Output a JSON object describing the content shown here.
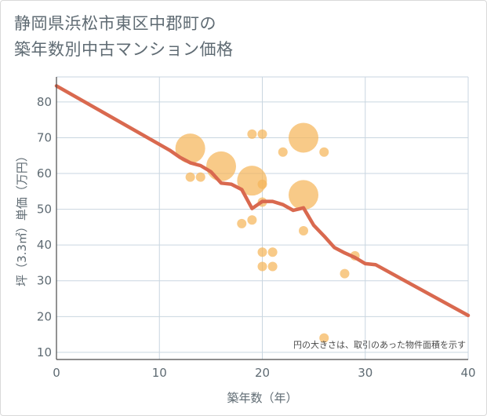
{
  "title_lines": [
    "静岡県浜松市東区中郡町の",
    "築年数別中古マンション価格"
  ],
  "colors": {
    "bubble": "#f5b55a",
    "trend": "#d9694f",
    "grid": "#c9d6e0",
    "text": "#5f6b73"
  },
  "chart_data": {
    "type": "scatter",
    "title": "静岡県浜松市東区中郡町の築年数別中古マンション価格",
    "xlabel": "築年数（年）",
    "ylabel": "坪（3.3㎡）単価（万円）",
    "xlim": [
      0,
      40
    ],
    "ylim": [
      8,
      87
    ],
    "xticks": [
      0,
      10,
      20,
      30,
      40
    ],
    "yticks": [
      10,
      20,
      30,
      40,
      50,
      60,
      70,
      80
    ],
    "grid": true,
    "note": "円の大きさは、取引のあった物件面積を示す",
    "points": [
      {
        "x": 13,
        "y": 67,
        "size": 3
      },
      {
        "x": 13,
        "y": 59,
        "size": 1
      },
      {
        "x": 14,
        "y": 59,
        "size": 1
      },
      {
        "x": 16,
        "y": 62,
        "size": 3
      },
      {
        "x": 18,
        "y": 46,
        "size": 1
      },
      {
        "x": 19,
        "y": 71,
        "size": 1
      },
      {
        "x": 19,
        "y": 58,
        "size": 3
      },
      {
        "x": 19,
        "y": 47,
        "size": 1
      },
      {
        "x": 20,
        "y": 71,
        "size": 1
      },
      {
        "x": 20,
        "y": 57,
        "size": 1
      },
      {
        "x": 20,
        "y": 52,
        "size": 1
      },
      {
        "x": 20,
        "y": 38,
        "size": 1
      },
      {
        "x": 20,
        "y": 34,
        "size": 1
      },
      {
        "x": 21,
        "y": 38,
        "size": 1
      },
      {
        "x": 21,
        "y": 34,
        "size": 1
      },
      {
        "x": 22,
        "y": 66,
        "size": 1
      },
      {
        "x": 24,
        "y": 70,
        "size": 3
      },
      {
        "x": 24,
        "y": 54,
        "size": 3
      },
      {
        "x": 24,
        "y": 44,
        "size": 1
      },
      {
        "x": 26,
        "y": 66,
        "size": 1
      },
      {
        "x": 26,
        "y": 14,
        "size": 1
      },
      {
        "x": 28,
        "y": 32,
        "size": 1
      },
      {
        "x": 29,
        "y": 37,
        "size": 1
      }
    ],
    "trend": [
      {
        "x": 0,
        "y": 84.5
      },
      {
        "x": 11,
        "y": 66.5
      },
      {
        "x": 12,
        "y": 64.5
      },
      {
        "x": 13,
        "y": 63
      },
      {
        "x": 14,
        "y": 62.2
      },
      {
        "x": 15,
        "y": 60.5
      },
      {
        "x": 16,
        "y": 57.3
      },
      {
        "x": 17,
        "y": 57
      },
      {
        "x": 18,
        "y": 55.5
      },
      {
        "x": 19,
        "y": 50.2
      },
      {
        "x": 20,
        "y": 52.2
      },
      {
        "x": 21,
        "y": 52.2
      },
      {
        "x": 22,
        "y": 51.3
      },
      {
        "x": 23,
        "y": 49.7
      },
      {
        "x": 24,
        "y": 50.4
      },
      {
        "x": 25,
        "y": 45.5
      },
      {
        "x": 26,
        "y": 42.5
      },
      {
        "x": 27,
        "y": 39.3
      },
      {
        "x": 28,
        "y": 37.8
      },
      {
        "x": 29,
        "y": 36.5
      },
      {
        "x": 30,
        "y": 34.8
      },
      {
        "x": 31,
        "y": 34.5
      },
      {
        "x": 40,
        "y": 20.3
      }
    ]
  }
}
